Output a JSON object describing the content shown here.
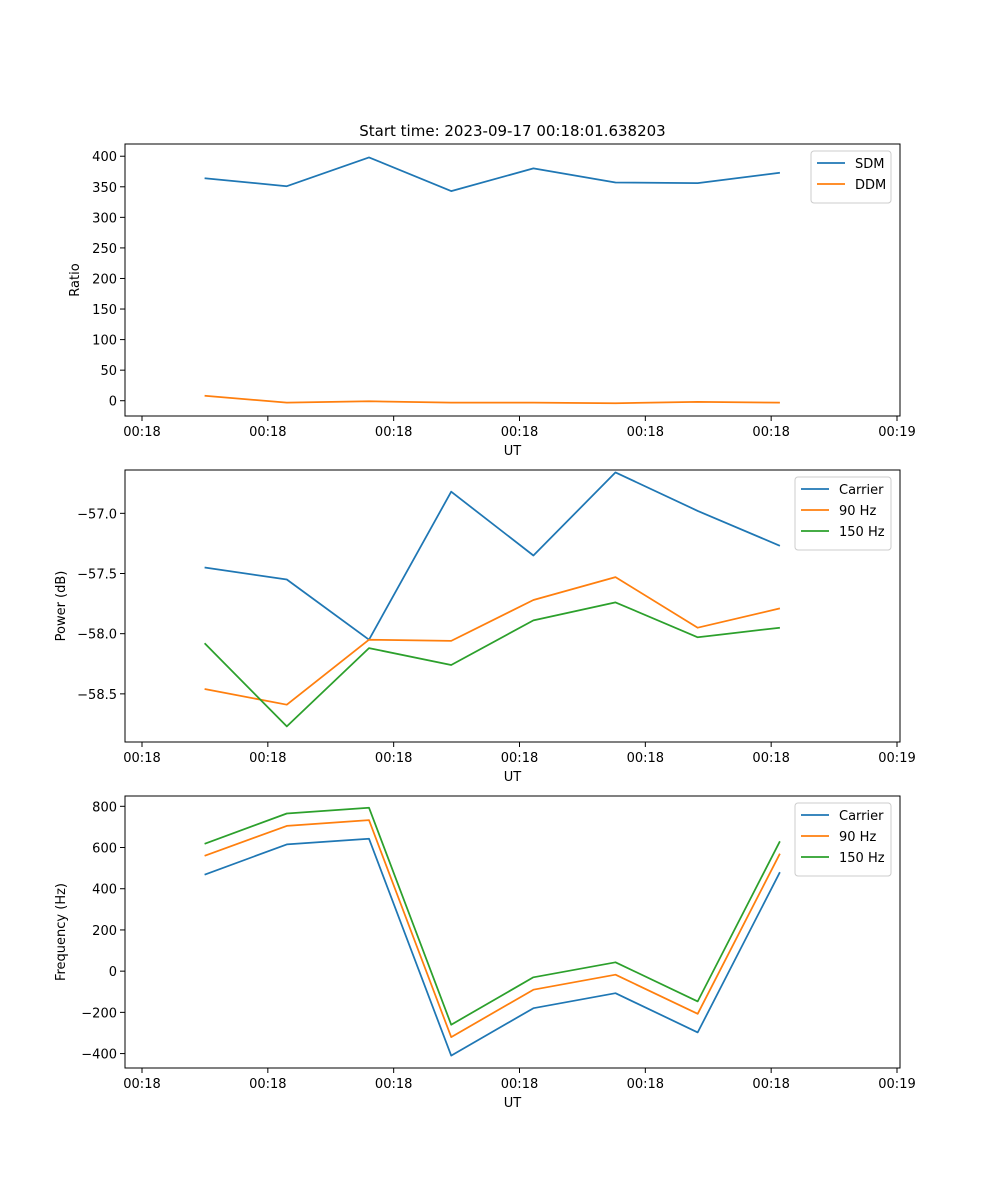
{
  "chart_data": [
    {
      "type": "line",
      "title": "Start time: 2023-09-17 00:18:01.638203",
      "xlabel": "UT",
      "ylabel": "Ratio",
      "x_tick_labels": [
        "00:18",
        "00:18",
        "00:18",
        "00:18",
        "00:18",
        "00:18",
        "00:19"
      ],
      "x": [
        0.5,
        1.15,
        1.8,
        2.45,
        3.1,
        3.75,
        4.4,
        5.05
      ],
      "xlim": [
        -0.13,
        6.0
      ],
      "ylim": [
        -25,
        420
      ],
      "yticks": [
        0,
        50,
        100,
        150,
        200,
        250,
        300,
        350,
        400
      ],
      "legend": "top-right",
      "series": [
        {
          "name": "SDM",
          "color": "#1f77b4",
          "values": [
            364,
            351,
            398,
            343,
            380,
            357,
            356,
            373
          ]
        },
        {
          "name": "DDM",
          "color": "#ff7f0e",
          "values": [
            8,
            -3,
            -1,
            -3,
            -3,
            -4,
            -2,
            -3
          ]
        }
      ]
    },
    {
      "type": "line",
      "title": "",
      "xlabel": "UT",
      "ylabel": "Power (dB)",
      "x_tick_labels": [
        "00:18",
        "00:18",
        "00:18",
        "00:18",
        "00:18",
        "00:18",
        "00:19"
      ],
      "x": [
        0.5,
        1.15,
        1.8,
        2.45,
        3.1,
        3.75,
        4.4,
        5.05
      ],
      "xlim": [
        -0.13,
        6.0
      ],
      "ylim": [
        -58.9,
        -56.64
      ],
      "yticks": [
        -58.5,
        -58.0,
        -57.5,
        -57.0
      ],
      "ytick_labels": [
        "−58.5",
        "−58.0",
        "−57.5",
        "−57.0"
      ],
      "legend": "top-right",
      "series": [
        {
          "name": "Carrier",
          "color": "#1f77b4",
          "values": [
            -57.45,
            -57.55,
            -58.05,
            -56.82,
            -57.35,
            -56.66,
            -56.98,
            -57.27
          ]
        },
        {
          "name": "90 Hz",
          "color": "#ff7f0e",
          "values": [
            -58.46,
            -58.59,
            -58.05,
            -58.06,
            -57.72,
            -57.53,
            -57.95,
            -57.79
          ]
        },
        {
          "name": "150 Hz",
          "color": "#2ca02c",
          "values": [
            -58.08,
            -58.77,
            -58.12,
            -58.26,
            -57.89,
            -57.74,
            -58.03,
            -57.95
          ]
        }
      ]
    },
    {
      "type": "line",
      "title": "",
      "xlabel": "UT",
      "ylabel": "Frequency (Hz)",
      "x_tick_labels": [
        "00:18",
        "00:18",
        "00:18",
        "00:18",
        "00:18",
        "00:18",
        "00:19"
      ],
      "x": [
        0.5,
        1.15,
        1.8,
        2.45,
        3.1,
        3.75,
        4.4,
        5.05
      ],
      "xlim": [
        -0.13,
        6.0
      ],
      "ylim": [
        -470,
        850
      ],
      "yticks": [
        -400,
        -200,
        0,
        200,
        400,
        600,
        800
      ],
      "ytick_labels": [
        "−400",
        "−200",
        "0",
        "200",
        "400",
        "600",
        "800"
      ],
      "legend": "top-right",
      "series": [
        {
          "name": "Carrier",
          "color": "#1f77b4",
          "values": [
            468,
            615,
            643,
            -410,
            -180,
            -107,
            -297,
            480
          ]
        },
        {
          "name": "90 Hz",
          "color": "#ff7f0e",
          "values": [
            560,
            705,
            733,
            -320,
            -90,
            -17,
            -207,
            570
          ]
        },
        {
          "name": "150 Hz",
          "color": "#2ca02c",
          "values": [
            618,
            765,
            793,
            -260,
            -30,
            43,
            -147,
            630
          ]
        }
      ]
    }
  ]
}
